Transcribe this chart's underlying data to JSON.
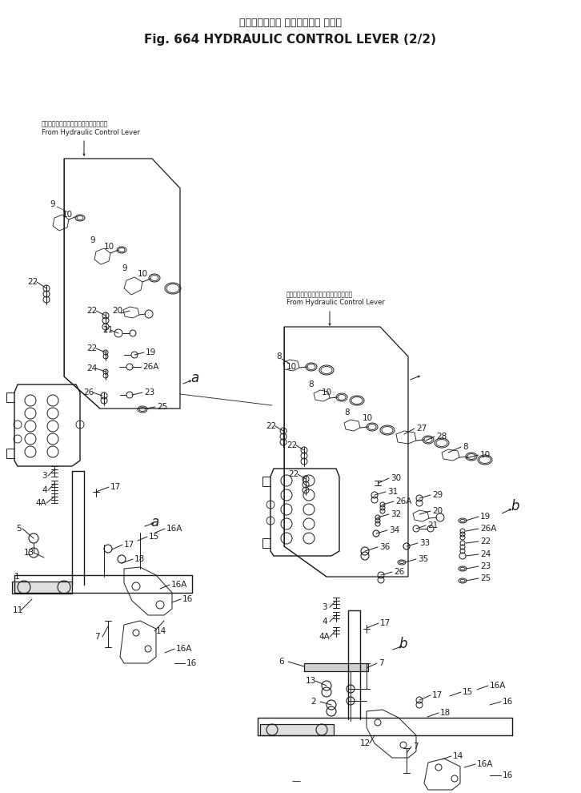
{
  "title_jp": "ハイドロリック コントロール レバー",
  "title_en": "Fig. 664 HYDRAULIC CONTROL LEVER (2/2)",
  "bg": "#ffffff",
  "ink": "#1a1a1a",
  "from_jp": "ハイドロリックコントロールレバーより",
  "from_en": "From Hydraulic Control Lever",
  "lbl_a": "a",
  "lbl_b": "b"
}
